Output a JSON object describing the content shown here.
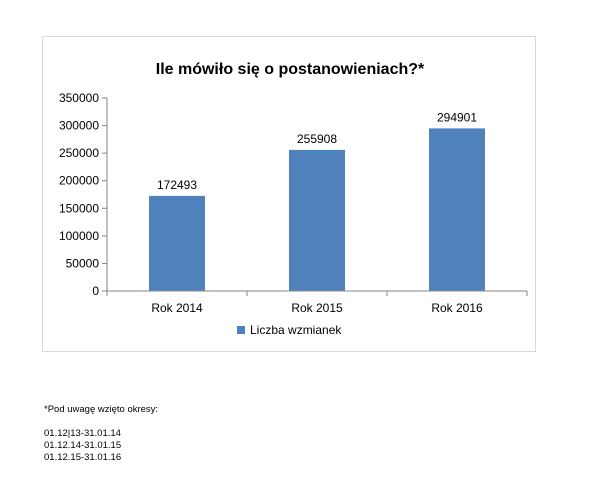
{
  "chart_data": {
    "type": "bar",
    "title": "Ile mówiło się o postanowieniach?*",
    "categories": [
      "Rok 2014",
      "Rok 2015",
      "Rok 2016"
    ],
    "series": [
      {
        "name": "Liczba wzmianek",
        "values": [
          172493,
          255908,
          294901
        ]
      }
    ],
    "data_labels": [
      "172493",
      "255908",
      "294901"
    ],
    "ylim": [
      0,
      350000
    ],
    "yticks": [
      0,
      50000,
      100000,
      150000,
      200000,
      250000,
      300000,
      350000
    ],
    "ytick_labels": [
      "0",
      "50000",
      "100000",
      "150000",
      "200000",
      "250000",
      "300000",
      "350000"
    ],
    "grid": false,
    "legend_position": "bottom",
    "colors": {
      "bar": "#4f81bd",
      "axis": "#868686",
      "frame": "#d9d9d9"
    }
  },
  "footnote": {
    "heading": "*Pod uwagę wzięto okresy:",
    "periods": [
      "01.12|13-31.01.14",
      "01.12.14-31.01.15",
      "01.12.15-31.01.16"
    ]
  }
}
